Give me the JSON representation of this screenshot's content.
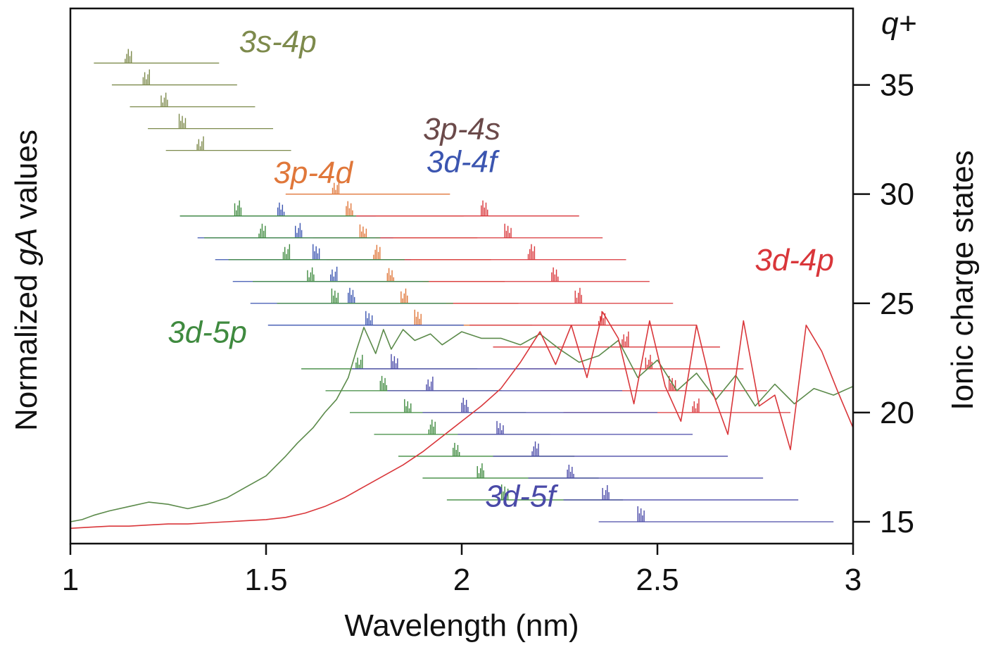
{
  "chart_data": {
    "type": "line",
    "xlabel": "Wavelength (nm)",
    "ylabel_left": "Normalized gA values",
    "ylabel_right": "Ionic charge states",
    "right_axis_title": "q+",
    "xlim": [
      1,
      3
    ],
    "ylim_right": [
      14,
      38.5
    ],
    "xticks": [
      1,
      1.5,
      2,
      2.5,
      3
    ],
    "xtick_labels": [
      "1",
      "1.5",
      "2",
      "2.5",
      "3"
    ],
    "yticks_right": [
      15,
      20,
      25,
      30,
      35
    ],
    "ytick_labels_right": [
      "15",
      "20",
      "25",
      "30",
      "35"
    ],
    "grid": false,
    "colors": {
      "green_spectrum": "#5b8a4a",
      "red_spectrum": "#d9363a",
      "3s-4p": "#7d8a4c",
      "3p-4s": "#6b4a4a",
      "3p-4d": "#e0773a",
      "3d-4f": "#3b55b0",
      "3d-4p": "#d9363a",
      "3d-5p": "#3f8a3f",
      "3d-5f": "#4a4aa8"
    },
    "annotations": [
      {
        "text": "3s-4p",
        "color_key": "3s-4p",
        "x": 1.53,
        "q": 36.5
      },
      {
        "text": "3p-4s",
        "color_key": "3p-4s",
        "x": 2.0,
        "q": 32.5
      },
      {
        "text": "3d-4f",
        "color_key": "3d-4f",
        "x": 2.0,
        "q": 31.0
      },
      {
        "text": "3p-4d",
        "color_key": "3p-4d",
        "x": 1.62,
        "q": 30.5
      },
      {
        "text": "3d-4p",
        "color_key": "3d-4p",
        "x": 2.85,
        "q": 26.5
      },
      {
        "text": "3d-5p",
        "color_key": "3d-5p",
        "x": 1.35,
        "q": 23.2
      },
      {
        "text": "3d-5f",
        "color_key": "3d-5f",
        "x": 2.15,
        "q": 15.7
      }
    ],
    "series": [
      {
        "color_key": "green_spectrum",
        "x": [
          1.0,
          1.03,
          1.06,
          1.1,
          1.15,
          1.2,
          1.25,
          1.3,
          1.35,
          1.4,
          1.45,
          1.5,
          1.55,
          1.58,
          1.62,
          1.65,
          1.68,
          1.71,
          1.73,
          1.75,
          1.78,
          1.8,
          1.82,
          1.85,
          1.88,
          1.92,
          1.95,
          2.0,
          2.05,
          2.1,
          2.15,
          2.2,
          2.25,
          2.3,
          2.35,
          2.4,
          2.45,
          2.5,
          2.55,
          2.6,
          2.65,
          2.7,
          2.75,
          2.8,
          2.85,
          2.9,
          2.95,
          3.0
        ],
        "y": [
          15.0,
          15.1,
          15.3,
          15.5,
          15.7,
          15.9,
          15.8,
          15.6,
          15.8,
          16.1,
          16.6,
          17.1,
          18.0,
          18.6,
          19.3,
          20.0,
          20.6,
          21.6,
          22.8,
          23.9,
          22.7,
          23.8,
          22.9,
          23.8,
          23.3,
          23.6,
          23.1,
          23.7,
          23.4,
          23.4,
          23.1,
          23.6,
          22.9,
          22.3,
          22.6,
          23.3,
          21.6,
          22.4,
          21.0,
          21.8,
          20.6,
          21.7,
          20.3,
          21.3,
          20.4,
          21.1,
          20.8,
          21.2
        ]
      },
      {
        "color_key": "red_spectrum",
        "x": [
          1.0,
          1.05,
          1.1,
          1.15,
          1.2,
          1.25,
          1.3,
          1.35,
          1.4,
          1.45,
          1.5,
          1.55,
          1.6,
          1.65,
          1.7,
          1.75,
          1.8,
          1.85,
          1.9,
          1.95,
          2.0,
          2.05,
          2.1,
          2.15,
          2.2,
          2.24,
          2.28,
          2.32,
          2.36,
          2.4,
          2.44,
          2.48,
          2.52,
          2.56,
          2.6,
          2.64,
          2.68,
          2.72,
          2.76,
          2.8,
          2.84,
          2.88,
          2.92,
          2.96,
          3.0
        ],
        "y": [
          14.7,
          14.75,
          14.8,
          14.8,
          14.85,
          14.9,
          14.9,
          14.95,
          15.0,
          15.05,
          15.1,
          15.2,
          15.4,
          15.7,
          16.1,
          16.6,
          17.1,
          17.6,
          18.2,
          18.9,
          19.6,
          20.3,
          21.1,
          22.3,
          23.7,
          22.2,
          24.0,
          21.6,
          24.6,
          23.4,
          20.4,
          24.2,
          21.2,
          19.6,
          24.0,
          21.0,
          19.0,
          24.2,
          20.3,
          20.8,
          18.3,
          24.0,
          22.8,
          21.0,
          19.3
        ]
      }
    ],
    "charge_state_groups": [
      {
        "color_key": "3s-4p",
        "q": [
          36,
          35,
          34,
          33,
          32
        ]
      },
      {
        "color_key": "3p-4d",
        "q": [
          30,
          29,
          28,
          27,
          26,
          25,
          24
        ]
      },
      {
        "color_key": "3d-4f",
        "q": [
          29,
          28,
          27,
          26,
          25,
          24
        ]
      },
      {
        "color_key": "3d-4p",
        "q": [
          29,
          28,
          27,
          26,
          25,
          24,
          23,
          22,
          21,
          20
        ]
      },
      {
        "color_key": "3d-5p",
        "q": [
          29,
          28,
          27,
          26,
          25,
          22,
          21,
          20,
          19,
          18,
          17,
          16
        ]
      },
      {
        "color_key": "3d-5f",
        "q": [
          22,
          21,
          20,
          19,
          18,
          17,
          16,
          15
        ]
      }
    ]
  }
}
